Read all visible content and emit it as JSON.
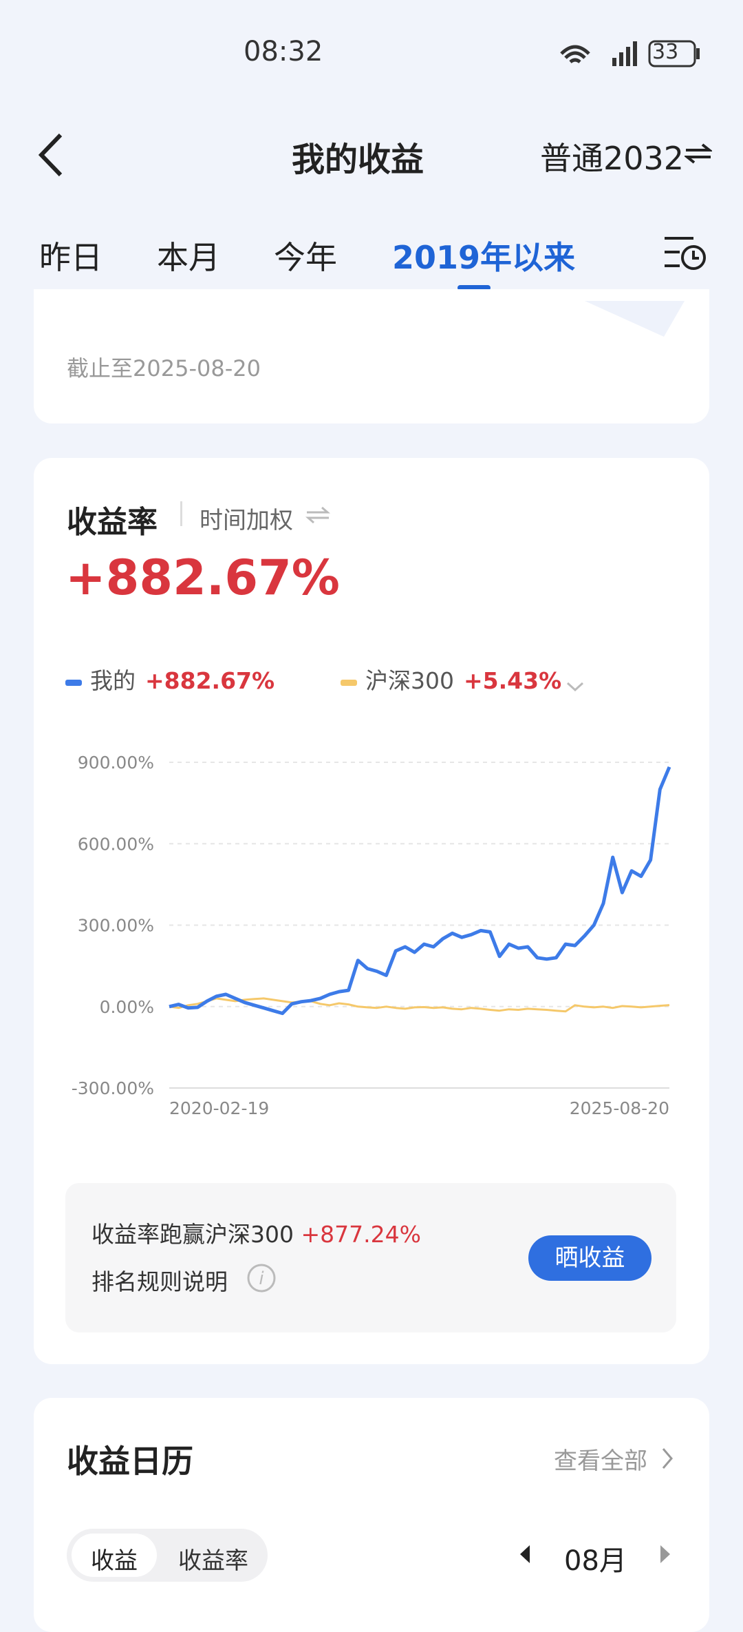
{
  "status_bar": {
    "time": "08:32",
    "battery": "33"
  },
  "header": {
    "title": "我的收益",
    "account": "普通2032"
  },
  "tabs": [
    "昨日",
    "本月",
    "今年",
    "2019年以来"
  ],
  "active_tab": 3,
  "summary_card": {
    "as_of": "截止至2025-08-20"
  },
  "return_card": {
    "title": "收益率",
    "mode": "时间加权",
    "total": "+882.67%",
    "compare_text": "收益率跑赢沪深300",
    "compare_value": "+877.24%",
    "rule": "排名规则说明",
    "share_button": "晒收益"
  },
  "chart_data": {
    "type": "line",
    "categories": [
      "2020-02-19",
      null,
      null,
      null,
      null,
      null,
      null,
      null,
      null,
      null,
      null,
      null,
      null,
      null,
      null,
      null,
      null,
      null,
      null,
      null,
      null,
      null,
      null,
      null,
      null,
      null,
      null,
      null,
      null,
      null,
      null,
      null,
      null,
      null,
      null,
      null,
      null,
      null,
      null,
      null,
      null,
      null,
      null,
      null,
      null,
      null,
      null,
      null,
      null,
      null,
      null,
      null,
      null,
      "2025-08-20"
    ],
    "series": [
      {
        "name": "我的",
        "summary": "+882.67%",
        "color": "#3d7be8",
        "values": [
          0,
          8,
          -5,
          -3,
          20,
          38,
          45,
          30,
          15,
          5,
          -5,
          -15,
          -25,
          10,
          18,
          22,
          30,
          45,
          55,
          60,
          170,
          140,
          130,
          115,
          205,
          220,
          200,
          230,
          220,
          250,
          270,
          255,
          265,
          280,
          275,
          185,
          230,
          215,
          220,
          180,
          175,
          180,
          230,
          225,
          260,
          300,
          380,
          550,
          420,
          500,
          480,
          540,
          800,
          882.67
        ]
      },
      {
        "name": "沪深300",
        "summary": "+5.43%",
        "color": "#f5c86a",
        "values": [
          0,
          -5,
          5,
          10,
          20,
          30,
          25,
          20,
          25,
          28,
          30,
          25,
          20,
          15,
          18,
          20,
          10,
          5,
          12,
          8,
          0,
          -3,
          -5,
          0,
          -5,
          -8,
          -3,
          -2,
          -5,
          -3,
          -8,
          -10,
          -5,
          -8,
          -12,
          -15,
          -10,
          -12,
          -8,
          -10,
          -12,
          -15,
          -18,
          5,
          0,
          -3,
          0,
          -5,
          2,
          0,
          -3,
          0,
          3,
          5.43
        ]
      }
    ],
    "ylim": [
      -300,
      900
    ],
    "yticks": [
      {
        "value": -300,
        "label": "-300.00%"
      },
      {
        "value": 0,
        "label": "0.00%"
      },
      {
        "value": 300,
        "label": "300.00%"
      },
      {
        "value": 600,
        "label": "600.00%"
      },
      {
        "value": 900,
        "label": "900.00%"
      }
    ],
    "grid": true
  },
  "calendar": {
    "title": "收益日历",
    "view_all": "查看全部",
    "toggle": [
      "收益",
      "收益率"
    ],
    "month": "08月"
  }
}
